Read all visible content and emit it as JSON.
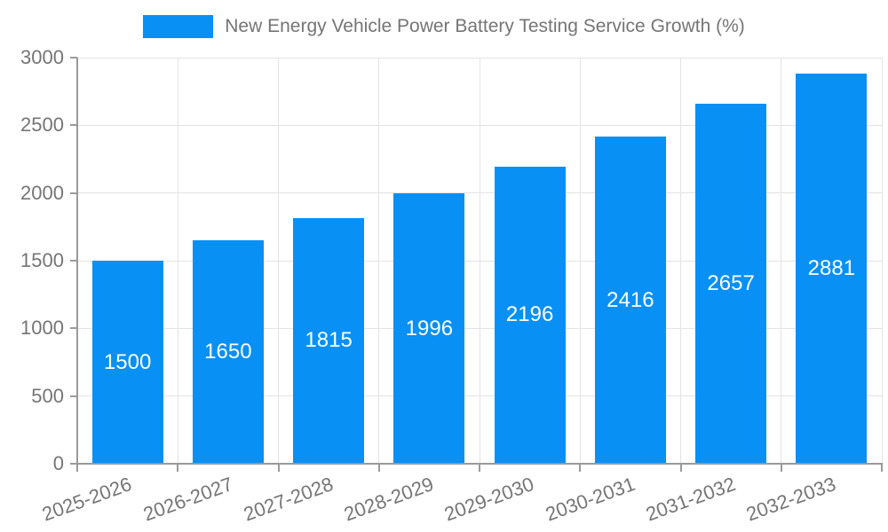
{
  "chart_data": {
    "type": "bar",
    "title": "New Energy Vehicle Power Battery Testing Service Growth (%)",
    "legend": [
      "New Energy Vehicle Power Battery Testing Service Growth (%)"
    ],
    "legend_position": "top-center",
    "categories": [
      "2025-2026",
      "2026-2027",
      "2027-2028",
      "2028-2029",
      "2029-2030",
      "2030-2031",
      "2031-2032",
      "2032-2033"
    ],
    "values": [
      1500,
      1650,
      1815,
      1996,
      2196,
      2416,
      2657,
      2881
    ],
    "bar_value_labels": [
      "1500",
      "1650",
      "1815",
      "1996",
      "2196",
      "2416",
      "2657",
      "2881"
    ],
    "xlabel": "",
    "ylabel": "",
    "ylim": [
      0,
      3000
    ],
    "yticks": [
      0,
      500,
      1000,
      1500,
      2000,
      2500,
      3000
    ],
    "ytick_labels": [
      "0",
      "500",
      "1000",
      "1500",
      "2000",
      "2500",
      "3000"
    ],
    "grid": "horizontal and vertical gridlines shown",
    "x_tick_rotation_deg": -20,
    "colors": {
      "bar": "#0890f5",
      "bar_label_text": "#ffffff",
      "grid": "#e3e3e3",
      "axis": "#9a9a9a",
      "tick_text": "#757575",
      "legend_text": "#757575",
      "background": "#ffffff"
    }
  }
}
